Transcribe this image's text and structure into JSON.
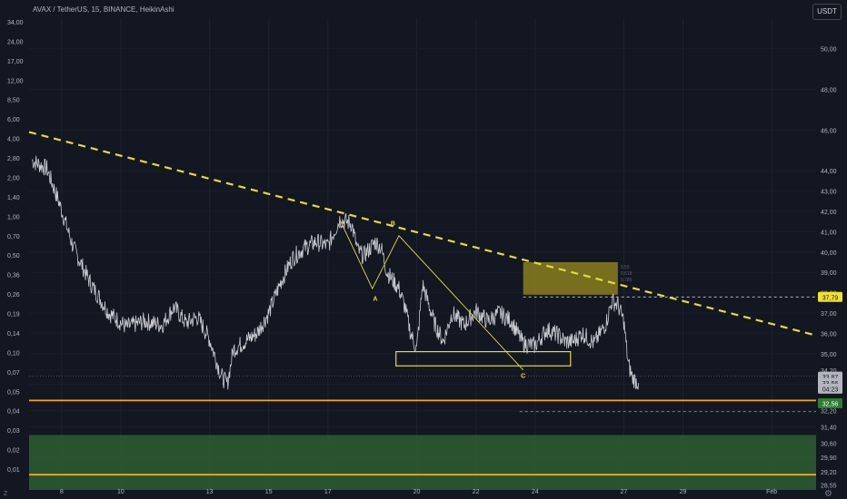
{
  "chart_data": {
    "type": "line",
    "title": "AVAX / TetherUS, 15, BINANCE, HeikinAshi",
    "currency_button": "USDT",
    "left_axis_labels": [
      "34,00",
      "24,00",
      "17,00",
      "12,00",
      "8,50",
      "6,00",
      "4,00",
      "2,80",
      "2,00",
      "1,40",
      "1,00",
      "0,70",
      "0,50",
      "0,36",
      "0,26",
      "0,19",
      "0,14",
      "0,10",
      "0,07",
      "0,05",
      "0,04",
      "0,03",
      "0,02",
      "0,01"
    ],
    "right_axis": {
      "ylim": [
        28.3,
        51.5
      ],
      "ticks": [
        50.0,
        48.0,
        46.0,
        44.0,
        43.0,
        42.0,
        41.0,
        40.0,
        39.0,
        38.0,
        37.0,
        36.0,
        35.0,
        34.2,
        33.5,
        32.2,
        31.4,
        30.6,
        29.9,
        29.2,
        28.55
      ],
      "tick_labels": [
        "50,00",
        "48,00",
        "46,00",
        "44,00",
        "43,00",
        "42,00",
        "41,00",
        "40,00",
        "39,00",
        "38,00",
        "37,00",
        "36,00",
        "35,00",
        "34,20",
        "33,50",
        "32,20",
        "31,40",
        "30,60",
        "29,90",
        "29,20",
        "28,55"
      ]
    },
    "x_axis": {
      "range_days": [
        6.9,
        33.5
      ],
      "ticks": [
        8,
        10,
        13,
        15,
        17,
        20,
        22,
        24,
        27,
        29,
        32
      ],
      "tick_labels": [
        "8",
        "10",
        "13",
        "15",
        "17",
        "20",
        "22",
        "24",
        "27",
        "29",
        "Feb"
      ]
    },
    "series": [
      {
        "values_x": [
          7.0,
          7.5,
          7.9,
          8.4,
          9.0,
          9.6,
          10.2,
          10.8,
          11.4,
          11.8,
          12.2,
          12.6,
          13.0,
          13.4,
          13.6,
          13.8,
          14.2,
          14.6,
          15.0,
          15.4,
          15.8,
          16.2,
          16.6,
          17.0,
          17.4,
          17.8,
          18.0,
          18.2,
          18.6,
          18.8,
          19.0,
          19.4,
          19.6,
          19.8,
          20.0,
          20.2,
          20.6,
          20.9,
          21.2,
          21.6,
          22.0,
          22.4,
          22.8,
          23.2,
          23.6,
          24.0,
          24.4,
          24.8,
          25.0,
          25.3,
          25.6,
          26.0,
          26.4,
          26.6,
          26.8,
          27.0,
          27.15,
          27.3,
          27.5
        ],
        "values": [
          44.5,
          44.1,
          42.5,
          40.2,
          38.4,
          37.0,
          36.3,
          36.6,
          36.4,
          37.3,
          36.5,
          36.8,
          35.7,
          33.9,
          33.5,
          35.2,
          35.6,
          36.0,
          37.0,
          38.5,
          39.7,
          40.2,
          40.5,
          40.3,
          41.6,
          41.4,
          40.1,
          39.8,
          40.5,
          40.2,
          39.0,
          38.2,
          37.3,
          36.0,
          35.2,
          38.4,
          36.5,
          35.6,
          37.0,
          36.4,
          37.1,
          36.6,
          37.0,
          36.6,
          35.5,
          35.4,
          36.2,
          35.9,
          35.6,
          35.6,
          36.0,
          35.5,
          36.5,
          37.6,
          37.4,
          36.6,
          34.5,
          33.8,
          33.56
        ]
      }
    ],
    "annotations": {
      "downtrend_line": {
        "from": [
          6.9,
          45.9
        ],
        "to": [
          33.5,
          35.9
        ]
      },
      "resistance_box": {
        "x": [
          23.6,
          26.8
        ],
        "y": [
          37.9,
          39.5
        ],
        "labels": [
          "0,50",
          "0,618",
          "0,786"
        ]
      },
      "support_box": {
        "x": [
          19.3,
          25.2
        ],
        "y": [
          34.4,
          35.1
        ]
      },
      "support_line_level": 32.7,
      "lower_line_level": 29.05,
      "green_zone": {
        "y": [
          28.3,
          31.0
        ]
      },
      "wave_path": [
        [
          17.4,
          41.6
        ],
        [
          18.5,
          38.2
        ],
        [
          19.4,
          40.8
        ],
        [
          23.6,
          34.2
        ]
      ],
      "wave_labels": [
        {
          "text": "A",
          "x": 18.6,
          "y": 37.6
        },
        {
          "text": "B",
          "x": 19.2,
          "y": 41.3
        },
        {
          "text": "C",
          "x": 23.6,
          "y": 33.8
        }
      ],
      "dashed_level_upper": 37.79,
      "dashed_level_lower": 32.15,
      "dotted_level": 33.9
    },
    "price_tags": [
      {
        "text": "37,79",
        "value": 37.79,
        "color": "#f0e130",
        "text_color": "#131722"
      },
      {
        "text": "33,87",
        "value": 33.87,
        "color": "#b2b5be",
        "text_color": "#131722"
      },
      {
        "text": "33,56",
        "value": 33.56,
        "color": "#b2b5be",
        "text_color": "#131722"
      },
      {
        "text": "04:23",
        "value": 33.28,
        "color": "#b2b5be",
        "text_color": "#131722"
      },
      {
        "text": "32,56",
        "value": 32.56,
        "color": "#2e7d32",
        "text_color": "#ffffff"
      }
    ],
    "colors": {
      "background": "#131722",
      "price_line": "#c9cbd1",
      "trend_line": "#e3db3a",
      "orange_line": "#f5a623",
      "box": "#e3db3a",
      "fill_olive": "#8a7f1c",
      "green_zone": "#2e5e31"
    }
  },
  "corner_left": "Z",
  "corner_right": "⚙"
}
